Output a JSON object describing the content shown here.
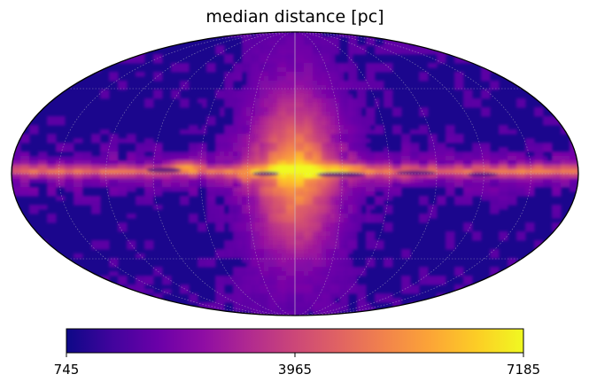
{
  "chart_data": {
    "type": "heatmap",
    "projection": "mollweide",
    "title": "median distance [pc]",
    "colormap": "plasma",
    "colorbar": {
      "min": 745,
      "max": 7185,
      "ticks": [
        "745",
        "3965",
        "7185"
      ],
      "orientation": "horizontal",
      "placement": "bottom"
    },
    "graticule": true,
    "colors": {
      "background": "#ffffff",
      "outline": "#000000",
      "graticule": "#bbbbbb"
    }
  }
}
